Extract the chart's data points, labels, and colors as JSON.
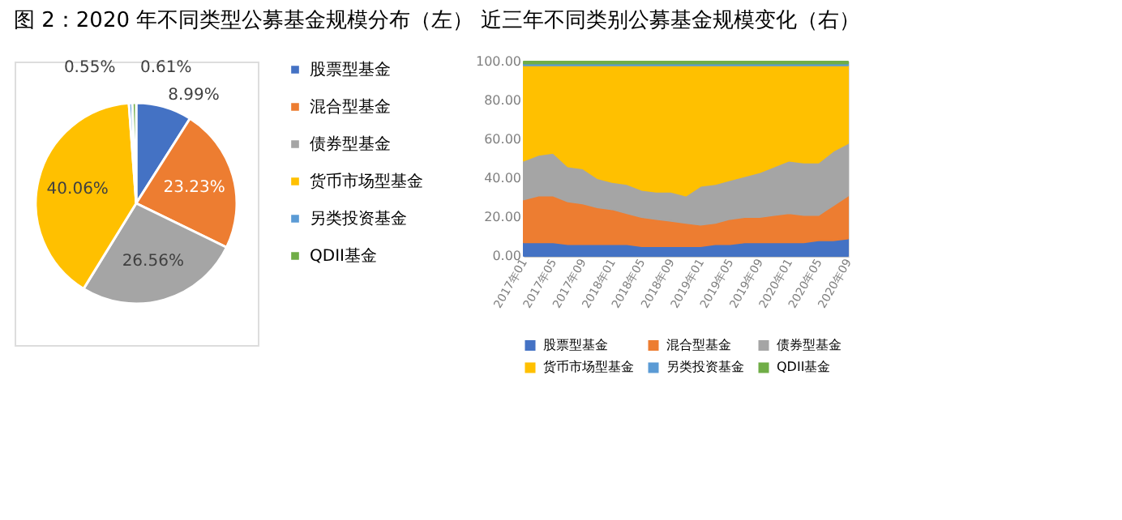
{
  "chart_data": [
    {
      "type": "pie",
      "title": "图 2：2020 年不同类型公募基金规模分布（左） 近三年不同类别公募基金规模变化（右）",
      "legend": "right",
      "categories": [
        "股票型基金",
        "混合型基金",
        "债券型基金",
        "货币市场型基金",
        "另类投资基金",
        "QDII基金"
      ],
      "values": [
        8.99,
        23.23,
        26.56,
        40.06,
        0.55,
        0.61
      ],
      "value_labels": [
        "8.99%",
        "23.23%",
        "26.56%",
        "40.06%",
        "0.55%",
        "0.61%"
      ],
      "colors": [
        "#4472c4",
        "#ed7d31",
        "#a5a5a5",
        "#ffc000",
        "#5b9bd5",
        "#70ad47"
      ]
    },
    {
      "type": "area",
      "stacked": true,
      "legend": "bottom",
      "categories": [
        "2017年01",
        null,
        "2017年05",
        null,
        "2017年09",
        null,
        "2018年01",
        null,
        "2018年05",
        null,
        "2018年09",
        null,
        "2019年01",
        null,
        "2019年05",
        null,
        "2019年09",
        null,
        "2020年01",
        null,
        "2020年05",
        null,
        "2020年09"
      ],
      "ylim": [
        0,
        100
      ],
      "yticks": [
        {
          "value": 0,
          "label": "0.00"
        },
        {
          "value": 20,
          "label": "20.00"
        },
        {
          "value": 40,
          "label": "40.00"
        },
        {
          "value": 60,
          "label": "60.00"
        },
        {
          "value": 80,
          "label": "80.00"
        },
        {
          "value": 100,
          "label": "100.00"
        }
      ],
      "series": [
        {
          "name": "股票型基金",
          "color": "#4472c4",
          "values": [
            7,
            7,
            7,
            6,
            6,
            6,
            6,
            6,
            5,
            5,
            5,
            5,
            5,
            6,
            6,
            7,
            7,
            7,
            7,
            7,
            8,
            8,
            9
          ]
        },
        {
          "name": "混合型基金",
          "color": "#ed7d31",
          "values": [
            22,
            24,
            24,
            22,
            21,
            19,
            18,
            16,
            15,
            14,
            13,
            12,
            11,
            11,
            13,
            13,
            13,
            14,
            15,
            14,
            13,
            18,
            22
          ]
        },
        {
          "name": "债券型基金",
          "color": "#a5a5a5",
          "values": [
            20,
            21,
            22,
            18,
            18,
            15,
            14,
            15,
            14,
            14,
            15,
            14,
            20,
            20,
            20,
            21,
            23,
            25,
            27,
            27,
            27,
            28,
            27
          ]
        },
        {
          "name": "货币市场型基金",
          "color": "#ffc000",
          "values": [
            49,
            46,
            45,
            52,
            53,
            58,
            60,
            61,
            64,
            65,
            65,
            67,
            62,
            61,
            59,
            57,
            55,
            52,
            49,
            50,
            50,
            44,
            40
          ]
        },
        {
          "name": "另类投资基金",
          "color": "#5b9bd5",
          "values": [
            1,
            1,
            1,
            1,
            1,
            1,
            1,
            1,
            1,
            1,
            1,
            1,
            1,
            1,
            1,
            1,
            1,
            1,
            1,
            1,
            1,
            1,
            1
          ]
        },
        {
          "name": "QDII基金",
          "color": "#70ad47",
          "values": [
            1,
            1,
            1,
            1,
            1,
            1,
            1,
            1,
            1,
            1,
            1,
            1,
            1,
            1,
            1,
            1,
            1,
            1,
            1,
            1,
            1,
            1,
            1
          ]
        }
      ]
    }
  ]
}
